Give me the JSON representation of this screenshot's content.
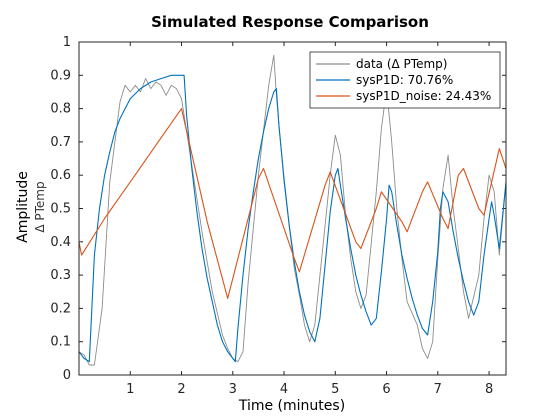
{
  "chart_data": {
    "type": "line",
    "title": "Simulated Response Comparison",
    "xlabel": "Time (minutes)",
    "ylabel": "Amplitude",
    "ylabel_unit": "Δ PTemp",
    "xlim": [
      0,
      8.33
    ],
    "ylim": [
      0,
      1
    ],
    "xticks": [
      1,
      2,
      3,
      4,
      5,
      6,
      7,
      8
    ],
    "yticks": [
      0,
      0.1,
      0.2,
      0.3,
      0.4,
      0.5,
      0.6,
      0.7,
      0.8,
      0.9,
      1
    ],
    "ytick_labels": [
      "0",
      "0.1",
      "0.2",
      "0.3",
      "0.4",
      "0.5",
      "0.6",
      "0.7",
      "0.8",
      "0.9",
      "1"
    ],
    "grid": false,
    "legend": "top-right",
    "series": [
      {
        "name": "data (Δ PTemp)",
        "color": "#8c8c8c",
        "x": [
          0,
          0.1,
          0.2,
          0.3,
          0.45,
          0.6,
          0.7,
          0.8,
          0.9,
          1.0,
          1.1,
          1.2,
          1.3,
          1.4,
          1.5,
          1.6,
          1.7,
          1.8,
          1.9,
          2.0,
          2.05,
          2.2,
          2.4,
          2.6,
          2.8,
          2.9,
          3.0,
          3.1,
          3.2,
          3.3,
          3.5,
          3.7,
          3.8,
          3.85,
          4.0,
          4.2,
          4.3,
          4.4,
          4.5,
          4.6,
          4.8,
          4.9,
          5.0,
          5.1,
          5.2,
          5.3,
          5.4,
          5.5,
          5.6,
          5.8,
          5.9,
          6.0,
          6.1,
          6.2,
          6.3,
          6.4,
          6.6,
          6.7,
          6.8,
          6.9,
          7.0,
          7.1,
          7.2,
          7.3,
          7.4,
          7.5,
          7.6,
          7.8,
          7.9,
          8.0,
          8.1,
          8.2,
          8.33
        ],
        "y": [
          0.07,
          0.06,
          0.03,
          0.03,
          0.2,
          0.58,
          0.7,
          0.82,
          0.87,
          0.85,
          0.87,
          0.85,
          0.89,
          0.86,
          0.88,
          0.87,
          0.84,
          0.87,
          0.86,
          0.83,
          0.78,
          0.63,
          0.43,
          0.25,
          0.12,
          0.08,
          0.05,
          0.04,
          0.07,
          0.28,
          0.6,
          0.87,
          0.96,
          0.84,
          0.58,
          0.32,
          0.24,
          0.15,
          0.1,
          0.15,
          0.45,
          0.6,
          0.72,
          0.66,
          0.48,
          0.35,
          0.25,
          0.2,
          0.24,
          0.55,
          0.74,
          0.86,
          0.7,
          0.5,
          0.35,
          0.22,
          0.15,
          0.08,
          0.05,
          0.1,
          0.35,
          0.56,
          0.66,
          0.5,
          0.38,
          0.25,
          0.17,
          0.3,
          0.47,
          0.6,
          0.55,
          0.36,
          0.58
        ]
      },
      {
        "name": "sysP1D: 70.76%",
        "color": "#0072bd",
        "x": [
          0,
          0.1,
          0.2,
          0.3,
          0.4,
          0.5,
          0.6,
          0.7,
          0.8,
          0.9,
          1.0,
          1.2,
          1.4,
          1.6,
          1.8,
          2.0,
          2.05,
          2.1,
          2.2,
          2.3,
          2.4,
          2.5,
          2.6,
          2.7,
          2.8,
          2.9,
          3.0,
          3.05,
          3.1,
          3.2,
          3.3,
          3.4,
          3.5,
          3.6,
          3.7,
          3.8,
          3.85,
          3.9,
          4.0,
          4.1,
          4.2,
          4.3,
          4.4,
          4.5,
          4.6,
          4.7,
          4.8,
          4.9,
          5.0,
          5.05,
          5.1,
          5.2,
          5.3,
          5.4,
          5.5,
          5.6,
          5.7,
          5.8,
          5.9,
          6.0,
          6.05,
          6.1,
          6.2,
          6.3,
          6.4,
          6.5,
          6.6,
          6.7,
          6.8,
          6.9,
          7.0,
          7.05,
          7.1,
          7.2,
          7.3,
          7.4,
          7.5,
          7.6,
          7.7,
          7.8,
          7.9,
          8.0,
          8.05,
          8.1,
          8.2,
          8.33
        ],
        "y": [
          0.07,
          0.05,
          0.04,
          0.36,
          0.5,
          0.6,
          0.67,
          0.73,
          0.77,
          0.8,
          0.83,
          0.86,
          0.88,
          0.89,
          0.9,
          0.9,
          0.9,
          0.78,
          0.62,
          0.49,
          0.38,
          0.29,
          0.22,
          0.15,
          0.1,
          0.07,
          0.05,
          0.04,
          0.14,
          0.3,
          0.44,
          0.55,
          0.65,
          0.73,
          0.8,
          0.85,
          0.86,
          0.75,
          0.59,
          0.45,
          0.34,
          0.25,
          0.18,
          0.13,
          0.1,
          0.17,
          0.33,
          0.49,
          0.6,
          0.62,
          0.57,
          0.47,
          0.38,
          0.3,
          0.24,
          0.19,
          0.15,
          0.17,
          0.31,
          0.47,
          0.57,
          0.55,
          0.45,
          0.36,
          0.29,
          0.23,
          0.18,
          0.14,
          0.12,
          0.22,
          0.37,
          0.5,
          0.55,
          0.52,
          0.43,
          0.35,
          0.28,
          0.22,
          0.18,
          0.22,
          0.36,
          0.47,
          0.52,
          0.48,
          0.38,
          0.58
        ]
      },
      {
        "name": "sysP1D_noise: 24.43%",
        "color": "#d95319",
        "x": [
          0,
          0.05,
          0.5,
          1.0,
          1.5,
          2.0,
          2.5,
          2.9,
          3.5,
          3.6,
          4.2,
          4.3,
          4.8,
          4.9,
          5.4,
          5.5,
          5.8,
          5.9,
          6.3,
          6.4,
          6.7,
          6.8,
          7.1,
          7.2,
          7.4,
          7.5,
          7.8,
          7.9,
          8.2,
          8.33
        ],
        "y": [
          0.4,
          0.36,
          0.47,
          0.58,
          0.69,
          0.8,
          0.46,
          0.23,
          0.59,
          0.62,
          0.35,
          0.31,
          0.57,
          0.61,
          0.4,
          0.38,
          0.5,
          0.55,
          0.46,
          0.43,
          0.55,
          0.58,
          0.47,
          0.44,
          0.6,
          0.62,
          0.5,
          0.48,
          0.68,
          0.62
        ]
      }
    ]
  }
}
